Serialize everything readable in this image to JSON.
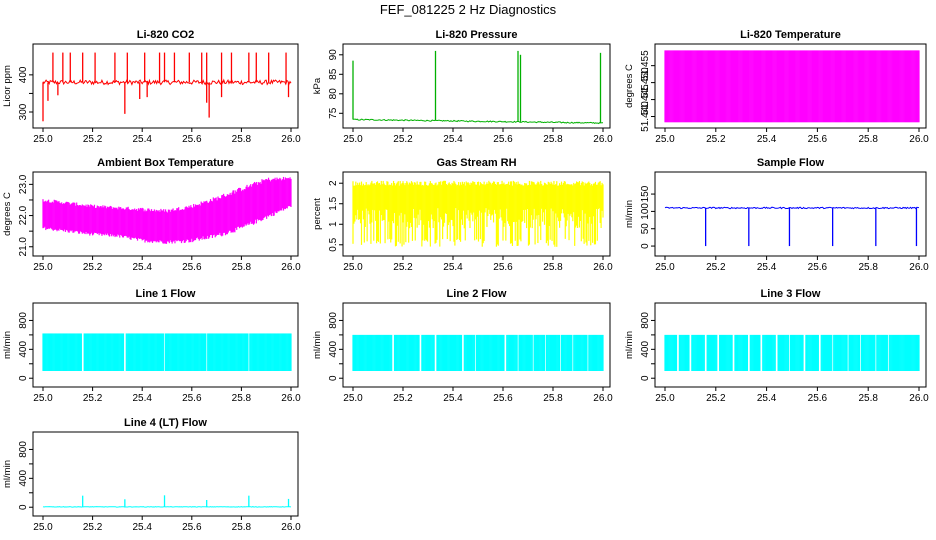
{
  "main_title": "FEF_081225  2 Hz Diagnostics",
  "colors": {
    "red": "#ff0000",
    "green": "#00b000",
    "magenta": "#ff00ff",
    "yellow": "#ffff00",
    "blue": "#0000ff",
    "cyan": "#00ffff",
    "axis": "#000000"
  },
  "chart_data": [
    {
      "type": "line",
      "title": "Li-820 CO2",
      "ylabel": "Licor ppm",
      "color": "red",
      "xlim": [
        25.0,
        26.0
      ],
      "ylim": [
        265,
        475
      ],
      "xticks": [
        "25.0",
        "25.2",
        "25.4",
        "25.6",
        "25.8",
        "26.0"
      ],
      "yticks": [
        300,
        350,
        400
      ],
      "ytick_labels": [
        "300",
        "",
        "400"
      ],
      "baseline": 380,
      "noise": 6,
      "spikes_up": [
        25.04,
        25.08,
        25.11,
        25.16,
        25.21,
        25.29,
        25.34,
        25.41,
        25.47,
        25.49,
        25.53,
        25.59,
        25.64,
        25.66,
        25.72,
        25.76,
        25.83,
        25.86,
        25.91,
        25.98
      ],
      "spike_up_to": 460,
      "spikes_down": [
        25.0,
        25.02,
        25.06,
        25.33,
        25.39,
        25.42,
        25.66,
        25.67,
        25.72,
        25.99
      ],
      "spike_down_to": [
        275,
        330,
        345,
        295,
        335,
        340,
        325,
        285,
        340,
        340
      ]
    },
    {
      "type": "line",
      "title": "Li-820 Pressure",
      "ylabel": "kPa",
      "color": "green",
      "xlim": [
        25.0,
        26.0
      ],
      "ylim": [
        72,
        92
      ],
      "xticks": [
        "25.0",
        "25.2",
        "25.4",
        "25.6",
        "25.8",
        "26.0"
      ],
      "yticks": [
        75,
        80,
        85,
        90
      ],
      "ytick_labels": [
        "75",
        "80",
        "85",
        "90"
      ],
      "baseline_start": 73.4,
      "baseline_end": 72.5,
      "spikes_up": [
        25.0,
        25.33,
        25.66,
        25.67,
        25.99
      ],
      "spike_up_to": [
        88.5,
        91,
        91,
        90,
        90.5
      ]
    },
    {
      "type": "band",
      "title": "Li-820 Temperature",
      "ylabel": "degrees C",
      "color": "magenta",
      "xlim": [
        25.0,
        26.0
      ],
      "ylim": [
        51.4375,
        51.4605
      ],
      "xticks": [
        "25.0",
        "25.2",
        "25.4",
        "25.6",
        "25.8",
        "26.0"
      ],
      "yticks": [
        51.44,
        51.445,
        51.45,
        51.455
      ],
      "ytick_labels": [
        "51.440",
        "51.445",
        "51.450",
        "51.455"
      ],
      "band_low": 51.4383,
      "band_high": 51.4595
    },
    {
      "type": "band",
      "title": "Ambient Box Temperature",
      "ylabel": "degrees C",
      "color": "magenta",
      "xlim": [
        25.0,
        26.0
      ],
      "ylim": [
        20.8,
        23.3
      ],
      "xticks": [
        "25.0",
        "25.2",
        "25.4",
        "25.6",
        "25.8",
        "26.0"
      ],
      "yticks": [
        21.0,
        21.5,
        22.0,
        22.5,
        23.0
      ],
      "ytick_labels": [
        "21.0",
        "",
        "22.0",
        "",
        "23.0"
      ],
      "band_x": [
        25.0,
        25.1,
        25.2,
        25.3,
        25.4,
        25.5,
        25.6,
        25.7,
        25.8,
        25.9,
        26.0
      ],
      "band_low": [
        21.6,
        21.5,
        21.4,
        21.35,
        21.2,
        21.15,
        21.2,
        21.35,
        21.6,
        21.95,
        22.3
      ],
      "band_high": [
        22.5,
        22.4,
        22.3,
        22.25,
        22.2,
        22.15,
        22.3,
        22.55,
        22.85,
        23.15,
        23.2
      ]
    },
    {
      "type": "band",
      "title": "Gas Stream RH",
      "ylabel": "percent",
      "color": "yellow",
      "xlim": [
        25.0,
        26.0
      ],
      "ylim": [
        0.3,
        2.2
      ],
      "xticks": [
        "25.0",
        "25.2",
        "25.4",
        "25.6",
        "25.8",
        "26.0"
      ],
      "yticks": [
        0.5,
        1.0,
        1.5,
        2.0
      ],
      "ytick_labels": [
        "0.5",
        "1",
        "1.5",
        "2"
      ],
      "band_low": 0.45,
      "band_high": 2.0,
      "dense_low": 1.05
    },
    {
      "type": "line",
      "title": "Sample Flow",
      "ylabel": "ml/min",
      "color": "blue",
      "xlim": [
        25.0,
        26.0
      ],
      "ylim": [
        -20,
        205
      ],
      "xticks": [
        "25.0",
        "25.2",
        "25.4",
        "25.6",
        "25.8",
        "26.0"
      ],
      "yticks": [
        0,
        50,
        100,
        150
      ],
      "ytick_labels": [
        "0",
        "50",
        "100",
        "150"
      ],
      "baseline": 110,
      "noise": 2,
      "spikes_down": [
        25.16,
        25.33,
        25.49,
        25.66,
        25.83,
        25.99
      ],
      "spike_down_to": 0
    },
    {
      "type": "band",
      "title": "Line 1 Flow",
      "ylabel": "ml/min",
      "color": "cyan",
      "xlim": [
        25.0,
        26.0
      ],
      "ylim": [
        -80,
        1000
      ],
      "xticks": [
        "25.0",
        "25.2",
        "25.4",
        "25.6",
        "25.8",
        "26.0"
      ],
      "yticks": [
        0,
        200,
        400,
        600,
        800
      ],
      "ytick_labels": [
        "0",
        "",
        "400",
        "",
        "800"
      ],
      "band_low": 100,
      "band_high": 620,
      "gaps": [
        25.16,
        25.33,
        25.49,
        25.66,
        25.83
      ]
    },
    {
      "type": "band",
      "title": "Line 2 Flow",
      "ylabel": "ml/min",
      "color": "cyan",
      "xlim": [
        25.0,
        26.0
      ],
      "ylim": [
        -80,
        1000
      ],
      "xticks": [
        "25.0",
        "25.2",
        "25.4",
        "25.6",
        "25.8",
        "26.0"
      ],
      "yticks": [
        0,
        200,
        400,
        600,
        800
      ],
      "ytick_labels": [
        "0",
        "",
        "400",
        "",
        "800"
      ],
      "band_low": 100,
      "band_high": 600,
      "gaps": [
        25.16,
        25.27,
        25.33,
        25.44,
        25.49,
        25.61,
        25.66,
        25.72,
        25.77,
        25.83,
        25.88,
        25.94
      ]
    },
    {
      "type": "band",
      "title": "Line 3 Flow",
      "ylabel": "ml/min",
      "color": "cyan",
      "xlim": [
        25.0,
        26.0
      ],
      "ylim": [
        -80,
        1000
      ],
      "xticks": [
        "25.0",
        "25.2",
        "25.4",
        "25.6",
        "25.8",
        "26.0"
      ],
      "yticks": [
        0,
        200,
        400,
        600,
        800
      ],
      "ytick_labels": [
        "0",
        "",
        "400",
        "",
        "800"
      ],
      "band_low": 100,
      "band_high": 600,
      "gaps": [
        25.05,
        25.1,
        25.16,
        25.21,
        25.27,
        25.33,
        25.38,
        25.44,
        25.49,
        25.55,
        25.61,
        25.66,
        25.72,
        25.77,
        25.83,
        25.88
      ]
    },
    {
      "type": "line",
      "title": "Line 4 (LT) Flow",
      "ylabel": "ml/min",
      "color": "cyan",
      "xlim": [
        25.0,
        26.0
      ],
      "ylim": [
        -80,
        1000
      ],
      "xticks": [
        "25.0",
        "25.2",
        "25.4",
        "25.6",
        "25.8",
        "26.0"
      ],
      "yticks": [
        0,
        200,
        400,
        600,
        800
      ],
      "ytick_labels": [
        "0",
        "",
        "400",
        "",
        "800"
      ],
      "baseline": 5,
      "noise": 3,
      "spikes_up": [
        25.16,
        25.33,
        25.49,
        25.66,
        25.83,
        25.99
      ],
      "spike_up_to": [
        160,
        110,
        165,
        100,
        160,
        115
      ]
    }
  ]
}
